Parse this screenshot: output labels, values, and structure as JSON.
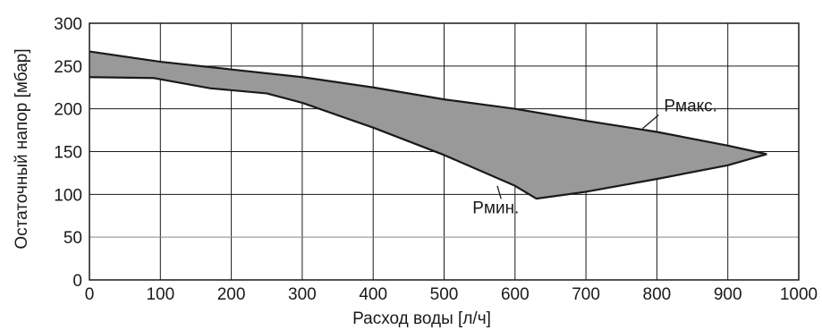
{
  "chart_data": {
    "type": "area",
    "xlabel": "Расход воды [л/ч]",
    "ylabel": "Остаточный напор [мбар]",
    "xlim": [
      0,
      1000
    ],
    "ylim": [
      0,
      300
    ],
    "x_ticks": [
      0,
      100,
      200,
      300,
      400,
      500,
      600,
      700,
      800,
      900,
      1000
    ],
    "y_ticks": [
      0,
      50,
      100,
      150,
      200,
      250,
      300
    ],
    "grid": true,
    "fill_color": "#999999",
    "line_color": "#1a1a1a",
    "series": [
      {
        "name": "Рмакс.",
        "x": [
          0,
          100,
          200,
          300,
          400,
          500,
          600,
          700,
          800,
          900,
          955
        ],
        "y": [
          267,
          255,
          246,
          237,
          225,
          211,
          200,
          186,
          173,
          157,
          147
        ]
      },
      {
        "name": "Рмин.",
        "x": [
          0,
          90,
          170,
          250,
          300,
          400,
          500,
          600,
          630,
          700,
          800,
          900,
          955
        ],
        "y": [
          237,
          236,
          224,
          218,
          207,
          178,
          146,
          110,
          95,
          103,
          118,
          134,
          147
        ]
      }
    ],
    "annotations": [
      {
        "text": "Рмакс.",
        "x": 810,
        "y": 197,
        "point_x": 780,
        "point_y": 177
      },
      {
        "text": "Рмин.",
        "x": 540,
        "y": 78,
        "point_x": 575,
        "point_y": 110
      }
    ]
  }
}
